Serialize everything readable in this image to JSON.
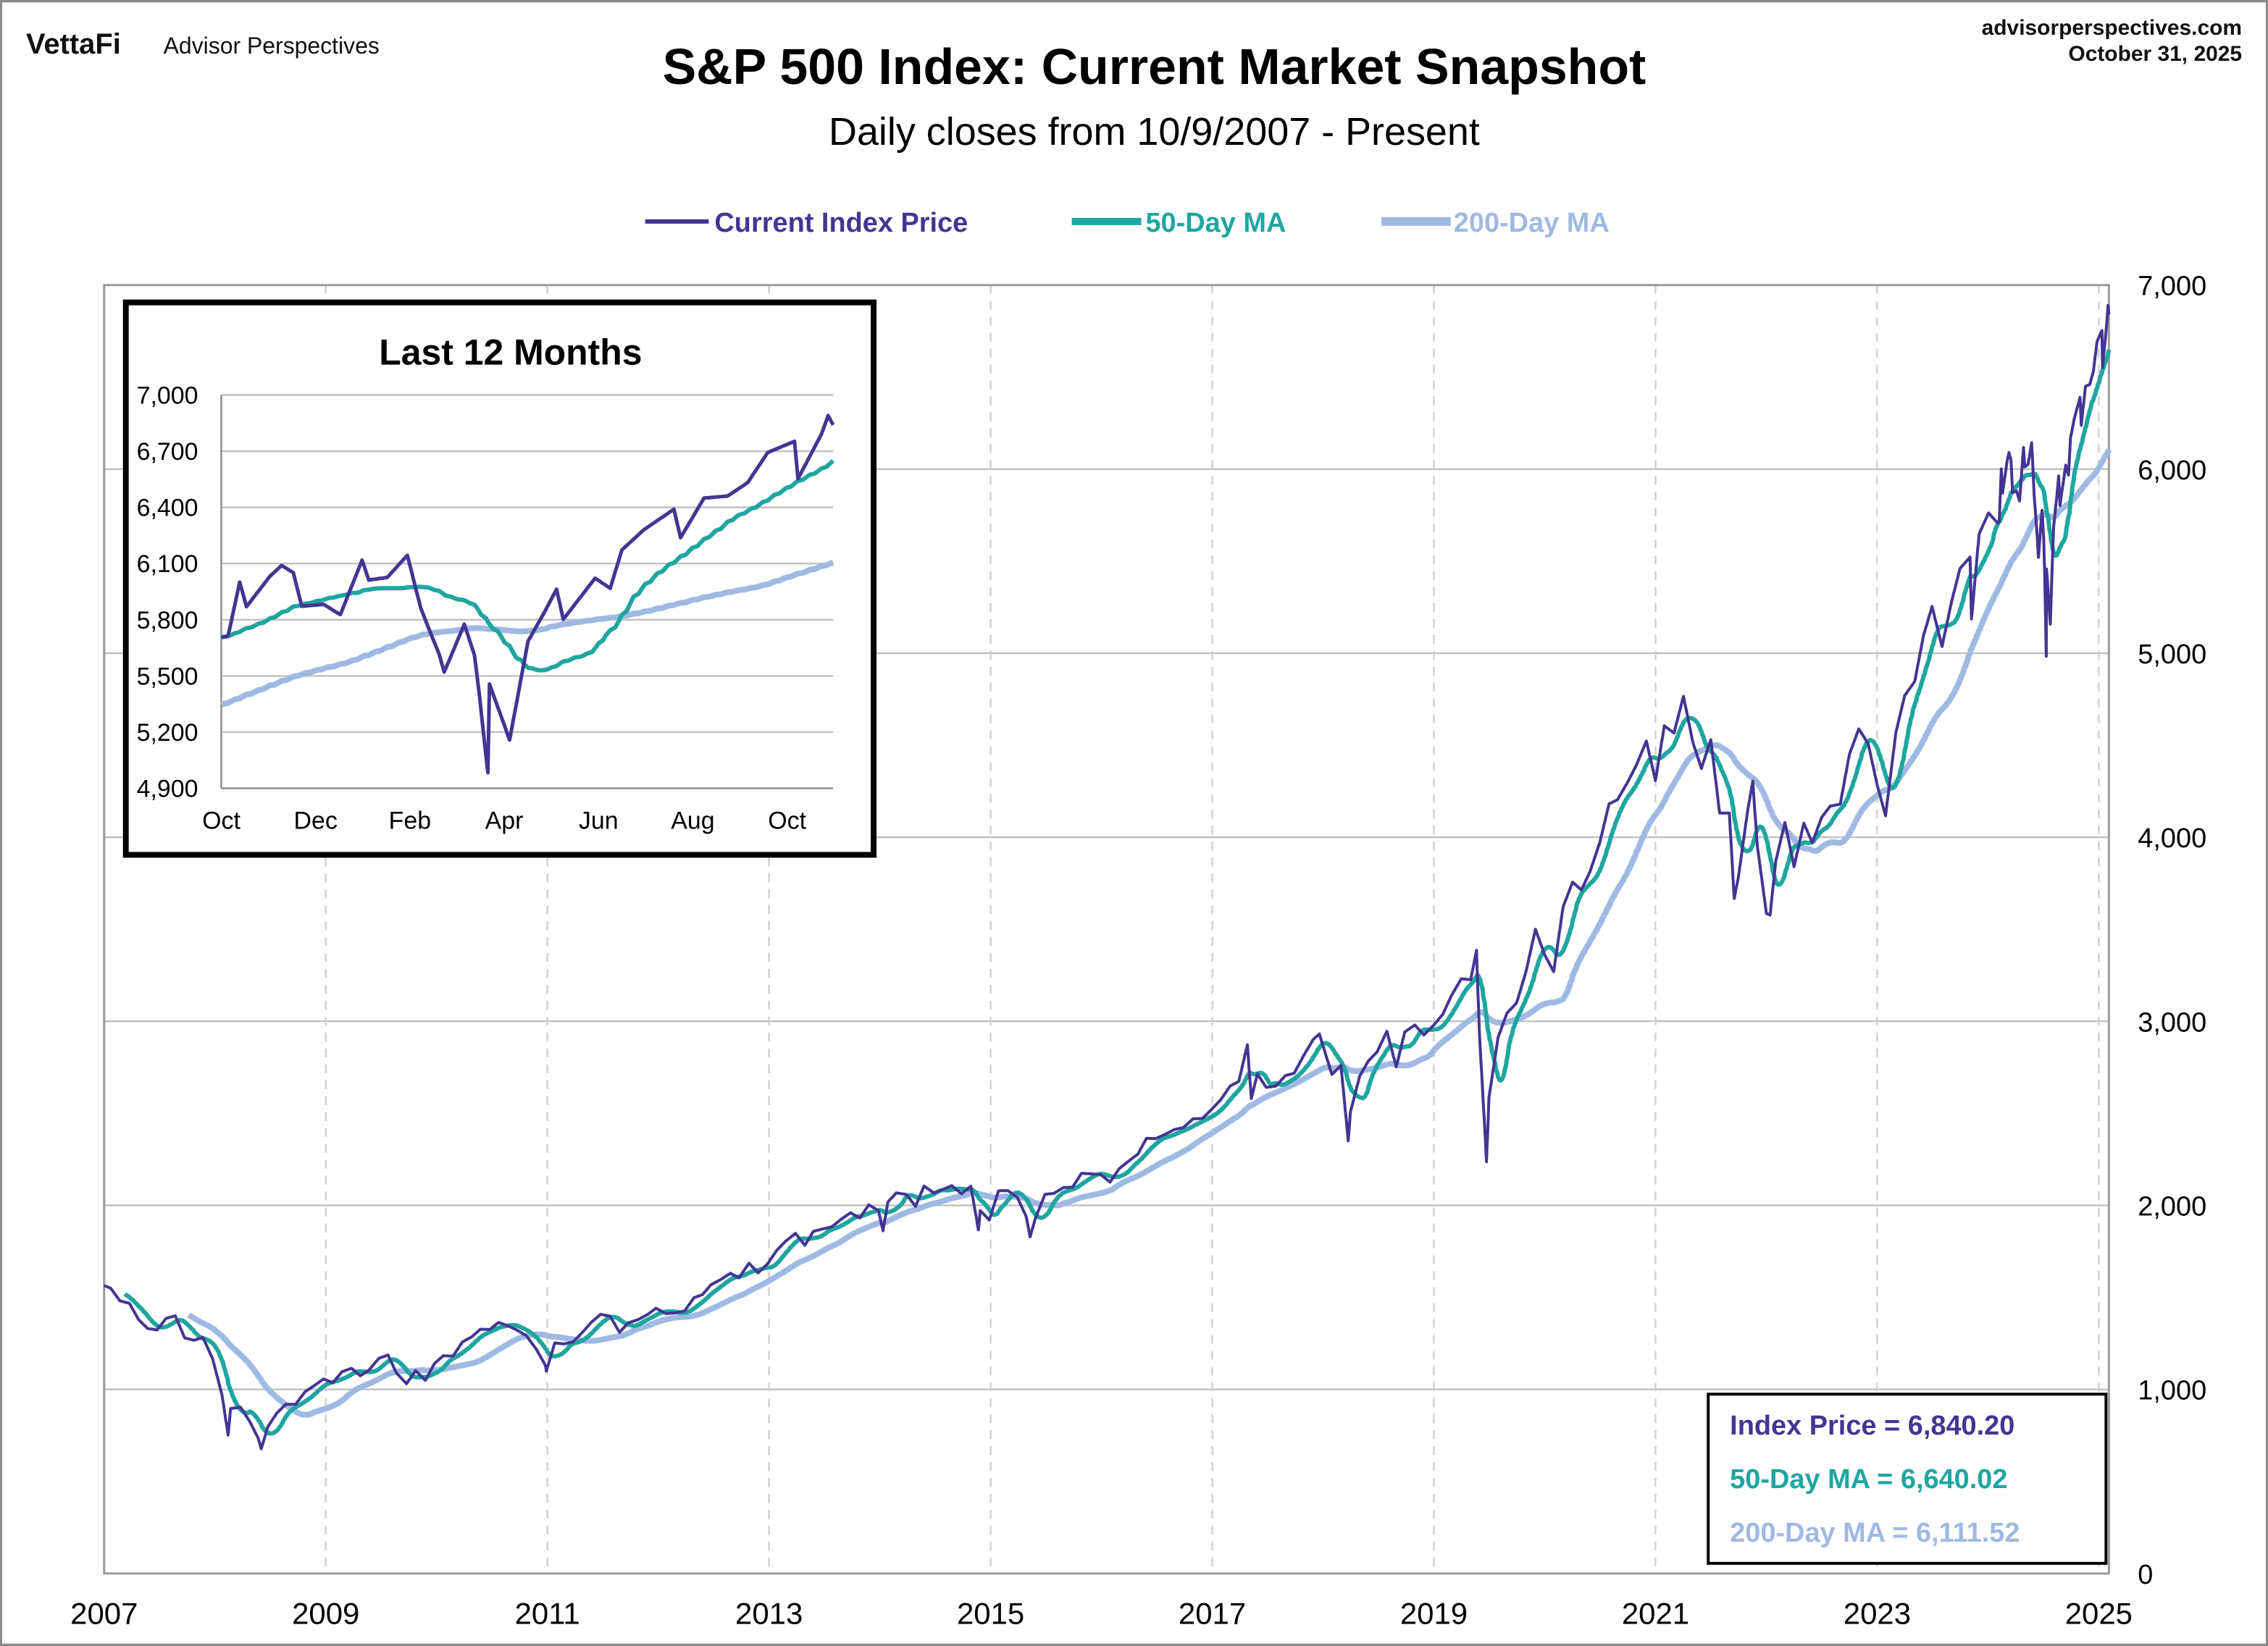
{
  "header": {
    "logo": "VettaFi",
    "brand": "Advisor Perspectives",
    "site": "advisorperspectives.com",
    "date": "October 31, 2025"
  },
  "colors": {
    "price": "#433592",
    "ma50": "#1fa6a0",
    "ma200": "#a0b9e2",
    "grid": "#c0c0c0"
  },
  "chart_data": [
    {
      "type": "line",
      "title": "S&P 500 Index: Current Market Snapshot",
      "subtitle": "Daily closes from 10/9/2007 - Present",
      "legend": [
        "Current Index Price",
        "50-Day MA",
        "200-Day MA"
      ],
      "legend_placement": "top-center",
      "x_tick_labels": [
        "2007",
        "2009",
        "2011",
        "2013",
        "2015",
        "2017",
        "2019",
        "2021",
        "2023",
        "2025"
      ],
      "y_tick_labels": [
        "0",
        "1,000",
        "2,000",
        "3,000",
        "4,000",
        "5,000",
        "6,000",
        "7,000"
      ],
      "ylim": [
        0,
        7000
      ],
      "y_axis_side": "right",
      "grid": true,
      "ma_windows_trading_days": [
        50,
        200
      ],
      "summary": {
        "price": "Index Price = 6,840.20",
        "ma50": "50-Day MA = 6,640.02",
        "ma200": "200-Day MA = 6,111.52"
      },
      "price_series": [
        [
          "2007-10-09",
          1565
        ],
        [
          "2007-10-31",
          1549
        ],
        [
          "2007-11-30",
          1481
        ],
        [
          "2007-12-31",
          1468
        ],
        [
          "2008-01-31",
          1378
        ],
        [
          "2008-02-29",
          1331
        ],
        [
          "2008-03-31",
          1323
        ],
        [
          "2008-04-30",
          1386
        ],
        [
          "2008-05-30",
          1400
        ],
        [
          "2008-06-30",
          1280
        ],
        [
          "2008-07-31",
          1267
        ],
        [
          "2008-08-29",
          1283
        ],
        [
          "2008-09-30",
          1166
        ],
        [
          "2008-10-31",
          969
        ],
        [
          "2008-11-20",
          752
        ],
        [
          "2008-11-28",
          896
        ],
        [
          "2008-12-31",
          903
        ],
        [
          "2009-01-30",
          826
        ],
        [
          "2009-02-27",
          735
        ],
        [
          "2009-03-09",
          677
        ],
        [
          "2009-03-31",
          798
        ],
        [
          "2009-04-30",
          873
        ],
        [
          "2009-05-29",
          919
        ],
        [
          "2009-06-30",
          919
        ],
        [
          "2009-07-31",
          987
        ],
        [
          "2009-08-31",
          1021
        ],
        [
          "2009-09-30",
          1057
        ],
        [
          "2009-10-30",
          1036
        ],
        [
          "2009-11-30",
          1096
        ],
        [
          "2009-12-31",
          1115
        ],
        [
          "2010-01-29",
          1074
        ],
        [
          "2010-02-26",
          1104
        ],
        [
          "2010-03-31",
          1169
        ],
        [
          "2010-04-30",
          1187
        ],
        [
          "2010-05-28",
          1089
        ],
        [
          "2010-06-30",
          1031
        ],
        [
          "2010-07-30",
          1102
        ],
        [
          "2010-08-31",
          1049
        ],
        [
          "2010-09-30",
          1141
        ],
        [
          "2010-10-29",
          1183
        ],
        [
          "2010-11-30",
          1181
        ],
        [
          "2010-12-31",
          1258
        ],
        [
          "2011-01-31",
          1286
        ],
        [
          "2011-02-28",
          1327
        ],
        [
          "2011-03-31",
          1326
        ],
        [
          "2011-04-29",
          1364
        ],
        [
          "2011-05-31",
          1345
        ],
        [
          "2011-06-30",
          1321
        ],
        [
          "2011-07-29",
          1292
        ],
        [
          "2011-08-31",
          1219
        ],
        [
          "2011-09-30",
          1131
        ],
        [
          "2011-10-03",
          1099
        ],
        [
          "2011-10-31",
          1253
        ],
        [
          "2011-11-30",
          1247
        ],
        [
          "2011-12-30",
          1258
        ],
        [
          "2012-01-31",
          1312
        ],
        [
          "2012-02-29",
          1366
        ],
        [
          "2012-03-30",
          1408
        ],
        [
          "2012-04-30",
          1398
        ],
        [
          "2012-05-31",
          1310
        ],
        [
          "2012-06-29",
          1362
        ],
        [
          "2012-07-31",
          1379
        ],
        [
          "2012-08-31",
          1407
        ],
        [
          "2012-09-28",
          1441
        ],
        [
          "2012-10-31",
          1412
        ],
        [
          "2012-11-30",
          1416
        ],
        [
          "2012-12-31",
          1426
        ],
        [
          "2013-01-31",
          1498
        ],
        [
          "2013-02-28",
          1515
        ],
        [
          "2013-03-28",
          1569
        ],
        [
          "2013-04-30",
          1598
        ],
        [
          "2013-05-31",
          1631
        ],
        [
          "2013-06-28",
          1606
        ],
        [
          "2013-07-31",
          1686
        ],
        [
          "2013-08-30",
          1633
        ],
        [
          "2013-09-30",
          1682
        ],
        [
          "2013-10-31",
          1757
        ],
        [
          "2013-11-29",
          1806
        ],
        [
          "2013-12-31",
          1848
        ],
        [
          "2014-01-31",
          1783
        ],
        [
          "2014-02-28",
          1859
        ],
        [
          "2014-03-31",
          1872
        ],
        [
          "2014-04-30",
          1884
        ],
        [
          "2014-05-30",
          1924
        ],
        [
          "2014-06-30",
          1960
        ],
        [
          "2014-07-31",
          1931
        ],
        [
          "2014-08-29",
          2003
        ],
        [
          "2014-09-30",
          1972
        ],
        [
          "2014-10-15",
          1862
        ],
        [
          "2014-10-31",
          2018
        ],
        [
          "2014-11-28",
          2068
        ],
        [
          "2014-12-31",
          2059
        ],
        [
          "2015-01-30",
          1995
        ],
        [
          "2015-02-27",
          2105
        ],
        [
          "2015-03-31",
          2068
        ],
        [
          "2015-04-30",
          2086
        ],
        [
          "2015-05-29",
          2107
        ],
        [
          "2015-06-30",
          2063
        ],
        [
          "2015-07-31",
          2104
        ],
        [
          "2015-08-25",
          1867
        ],
        [
          "2015-08-31",
          1972
        ],
        [
          "2015-09-30",
          1920
        ],
        [
          "2015-10-30",
          2079
        ],
        [
          "2015-11-30",
          2080
        ],
        [
          "2015-12-31",
          2044
        ],
        [
          "2016-01-29",
          1940
        ],
        [
          "2016-02-11",
          1829
        ],
        [
          "2016-02-29",
          1932
        ],
        [
          "2016-03-31",
          2060
        ],
        [
          "2016-04-29",
          2065
        ],
        [
          "2016-05-31",
          2097
        ],
        [
          "2016-06-30",
          2099
        ],
        [
          "2016-07-29",
          2174
        ],
        [
          "2016-08-31",
          2171
        ],
        [
          "2016-09-30",
          2168
        ],
        [
          "2016-10-31",
          2126
        ],
        [
          "2016-11-30",
          2199
        ],
        [
          "2016-12-30",
          2239
        ],
        [
          "2017-01-31",
          2279
        ],
        [
          "2017-02-28",
          2364
        ],
        [
          "2017-03-31",
          2363
        ],
        [
          "2017-04-28",
          2384
        ],
        [
          "2017-05-31",
          2412
        ],
        [
          "2017-06-30",
          2423
        ],
        [
          "2017-07-31",
          2470
        ],
        [
          "2017-08-31",
          2472
        ],
        [
          "2017-09-29",
          2519
        ],
        [
          "2017-10-31",
          2575
        ],
        [
          "2017-11-30",
          2648
        ],
        [
          "2017-12-29",
          2674
        ],
        [
          "2018-01-26",
          2873
        ],
        [
          "2018-02-08",
          2581
        ],
        [
          "2018-02-28",
          2714
        ],
        [
          "2018-03-29",
          2641
        ],
        [
          "2018-04-30",
          2648
        ],
        [
          "2018-05-31",
          2705
        ],
        [
          "2018-06-29",
          2718
        ],
        [
          "2018-07-31",
          2816
        ],
        [
          "2018-08-31",
          2902
        ],
        [
          "2018-09-20",
          2931
        ],
        [
          "2018-10-31",
          2711
        ],
        [
          "2018-11-30",
          2760
        ],
        [
          "2018-12-24",
          2351
        ],
        [
          "2018-12-31",
          2507
        ],
        [
          "2019-01-31",
          2704
        ],
        [
          "2019-02-28",
          2784
        ],
        [
          "2019-03-29",
          2834
        ],
        [
          "2019-04-30",
          2946
        ],
        [
          "2019-05-31",
          2752
        ],
        [
          "2019-06-28",
          2942
        ],
        [
          "2019-07-31",
          2980
        ],
        [
          "2019-08-30",
          2926
        ],
        [
          "2019-09-30",
          2977
        ],
        [
          "2019-10-31",
          3038
        ],
        [
          "2019-11-29",
          3141
        ],
        [
          "2019-12-31",
          3231
        ],
        [
          "2020-01-31",
          3226
        ],
        [
          "2020-02-19",
          3386
        ],
        [
          "2020-02-28",
          2954
        ],
        [
          "2020-03-23",
          2237
        ],
        [
          "2020-03-31",
          2585
        ],
        [
          "2020-04-30",
          2912
        ],
        [
          "2020-05-29",
          3044
        ],
        [
          "2020-06-30",
          3100
        ],
        [
          "2020-07-31",
          3271
        ],
        [
          "2020-08-31",
          3500
        ],
        [
          "2020-09-30",
          3363
        ],
        [
          "2020-10-30",
          3270
        ],
        [
          "2020-11-30",
          3622
        ],
        [
          "2020-12-31",
          3756
        ],
        [
          "2021-01-29",
          3714
        ],
        [
          "2021-02-26",
          3811
        ],
        [
          "2021-03-31",
          3973
        ],
        [
          "2021-04-30",
          4181
        ],
        [
          "2021-05-28",
          4204
        ],
        [
          "2021-06-30",
          4298
        ],
        [
          "2021-07-30",
          4395
        ],
        [
          "2021-08-31",
          4523
        ],
        [
          "2021-09-30",
          4308
        ],
        [
          "2021-10-29",
          4605
        ],
        [
          "2021-11-30",
          4567
        ],
        [
          "2021-12-31",
          4766
        ],
        [
          "2022-01-31",
          4516
        ],
        [
          "2022-02-28",
          4374
        ],
        [
          "2022-03-31",
          4530
        ],
        [
          "2022-04-29",
          4132
        ],
        [
          "2022-05-31",
          4132
        ],
        [
          "2022-06-16",
          3667
        ],
        [
          "2022-06-30",
          3785
        ],
        [
          "2022-07-29",
          4130
        ],
        [
          "2022-08-16",
          4305
        ],
        [
          "2022-08-31",
          3955
        ],
        [
          "2022-09-30",
          3586
        ],
        [
          "2022-10-12",
          3577
        ],
        [
          "2022-10-31",
          3872
        ],
        [
          "2022-11-30",
          4080
        ],
        [
          "2022-12-30",
          3840
        ],
        [
          "2023-01-31",
          4077
        ],
        [
          "2023-02-28",
          3970
        ],
        [
          "2023-03-31",
          4109
        ],
        [
          "2023-04-28",
          4169
        ],
        [
          "2023-05-31",
          4180
        ],
        [
          "2023-06-30",
          4450
        ],
        [
          "2023-07-31",
          4589
        ],
        [
          "2023-08-31",
          4508
        ],
        [
          "2023-09-29",
          4288
        ],
        [
          "2023-10-27",
          4117
        ],
        [
          "2023-11-30",
          4568
        ],
        [
          "2023-12-29",
          4770
        ],
        [
          "2024-01-31",
          4846
        ],
        [
          "2024-02-29",
          5096
        ],
        [
          "2024-03-28",
          5254
        ],
        [
          "2024-04-30",
          5036
        ],
        [
          "2024-05-31",
          5278
        ],
        [
          "2024-06-28",
          5460
        ],
        [
          "2024-07-31",
          5522
        ],
        [
          "2024-08-05",
          5186
        ],
        [
          "2024-08-30",
          5648
        ],
        [
          "2024-09-30",
          5762
        ],
        [
          "2024-10-31",
          5705
        ],
        [
          "2024-11-04",
          5712
        ],
        [
          "2024-11-11",
          6001
        ],
        [
          "2024-11-15",
          5870
        ],
        [
          "2024-11-29",
          6032
        ],
        [
          "2024-12-06",
          6090
        ],
        [
          "2024-12-13",
          6051
        ],
        [
          "2024-12-18",
          5872
        ],
        [
          "2024-12-31",
          5882
        ],
        [
          "2025-01-10",
          5827
        ],
        [
          "2025-01-23",
          6118
        ],
        [
          "2025-01-27",
          6012
        ],
        [
          "2025-02-07",
          6026
        ],
        [
          "2025-02-19",
          6144
        ],
        [
          "2025-02-27",
          5861
        ],
        [
          "2025-03-10",
          5614
        ],
        [
          "2025-03-13",
          5521
        ],
        [
          "2025-03-25",
          5776
        ],
        [
          "2025-03-31",
          5612
        ],
        [
          "2025-04-03",
          5396
        ],
        [
          "2025-04-08",
          4983
        ],
        [
          "2025-04-09",
          5457
        ],
        [
          "2025-04-21",
          5158
        ],
        [
          "2025-05-02",
          5686
        ],
        [
          "2025-05-12",
          5844
        ],
        [
          "2025-05-19",
          5963
        ],
        [
          "2025-05-23",
          5802
        ],
        [
          "2025-06-11",
          6022
        ],
        [
          "2025-06-20",
          5968
        ],
        [
          "2025-06-27",
          6173
        ],
        [
          "2025-07-10",
          6280
        ],
        [
          "2025-07-28",
          6390
        ],
        [
          "2025-08-01",
          6238
        ],
        [
          "2025-08-15",
          6450
        ],
        [
          "2025-08-29",
          6460
        ],
        [
          "2025-09-10",
          6532
        ],
        [
          "2025-09-22",
          6693
        ],
        [
          "2025-10-08",
          6753
        ],
        [
          "2025-10-10",
          6552
        ],
        [
          "2025-10-24",
          6791
        ],
        [
          "2025-10-28",
          6890
        ],
        [
          "2025-10-31",
          6840.2
        ]
      ]
    },
    {
      "type": "line",
      "title": "Last 12 Months",
      "x_tick_labels": [
        "Oct",
        "Dec",
        "Feb",
        "Apr",
        "Jun",
        "Aug",
        "Oct"
      ],
      "y_tick_labels": [
        "4,900",
        "5,200",
        "5,500",
        "5,800",
        "6,100",
        "6,400",
        "6,700",
        "7,000"
      ],
      "ylim": [
        4900,
        7000
      ],
      "xlim": [
        "2024-10-31",
        "2025-10-31"
      ],
      "grid": true,
      "series_source": "same as main chart price_series and moving averages"
    }
  ]
}
